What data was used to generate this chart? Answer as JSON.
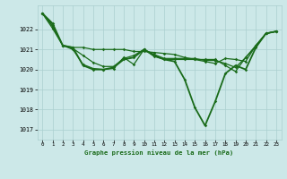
{
  "title": "Graphe pression niveau de la mer (hPa)",
  "background_color": "#cce8e8",
  "grid_color": "#aacfcf",
  "line_color": "#1a6b1a",
  "xlim": [
    -0.5,
    23.5
  ],
  "ylim": [
    1016.5,
    1023.2
  ],
  "xticks": [
    0,
    1,
    2,
    3,
    4,
    5,
    6,
    7,
    8,
    9,
    10,
    11,
    12,
    13,
    14,
    15,
    16,
    17,
    18,
    19,
    20,
    21,
    22,
    23
  ],
  "yticks": [
    1017,
    1018,
    1019,
    1020,
    1021,
    1022
  ],
  "series": [
    [
      1022.8,
      1022.3,
      1021.2,
      1021.1,
      1020.2,
      1020.0,
      1020.0,
      1020.1,
      1020.5,
      1020.6,
      1021.0,
      1020.7,
      1020.5,
      1020.4,
      1019.5,
      1018.1,
      1017.2,
      1018.4,
      1019.8,
      1020.2,
      1020.0,
      1021.1,
      1021.8,
      1021.9
    ],
    [
      1022.8,
      1022.2,
      1021.2,
      1021.1,
      1021.1,
      1021.0,
      1021.0,
      1021.0,
      1021.0,
      1020.9,
      1020.9,
      1020.85,
      1020.8,
      1020.75,
      1020.6,
      1020.5,
      1020.4,
      1020.3,
      1020.55,
      1020.5,
      1020.4,
      1021.2,
      1021.8,
      1021.9
    ],
    [
      1022.8,
      1022.15,
      1021.2,
      1021.05,
      1020.7,
      1020.35,
      1020.15,
      1020.15,
      1020.55,
      1020.7,
      1021.0,
      1020.75,
      1020.55,
      1020.55,
      1020.55,
      1020.55,
      1020.45,
      1020.45,
      1020.3,
      1020.1,
      1020.6,
      1021.15,
      1021.8,
      1021.9
    ],
    [
      1022.8,
      1022.05,
      1021.2,
      1021.0,
      1020.25,
      1020.05,
      1020.0,
      1020.05,
      1020.6,
      1020.25,
      1021.0,
      1020.65,
      1020.5,
      1020.5,
      1020.5,
      1020.5,
      1020.5,
      1020.5,
      1020.2,
      1019.9,
      1020.6,
      1021.2,
      1021.8,
      1021.9
    ]
  ]
}
